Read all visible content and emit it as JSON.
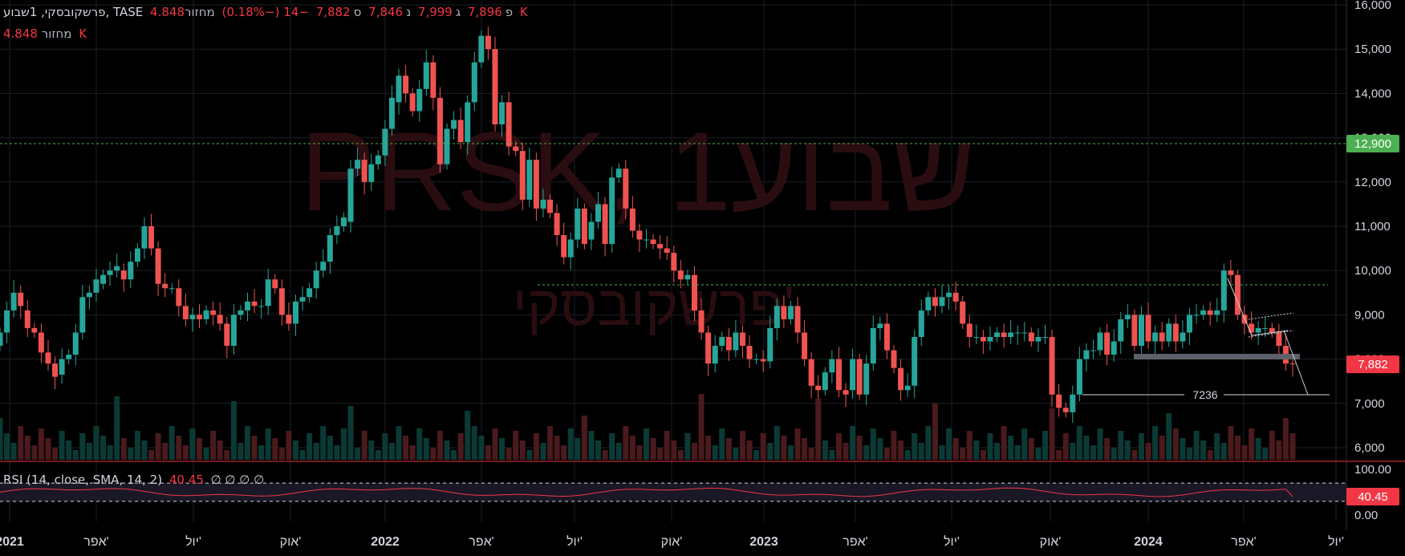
{
  "legend": {
    "symbol_line": "פרשקובסקי, 1שבוע, TASE",
    "open_label": "פ",
    "open_value": "7,896",
    "high_label": "ג",
    "high_value": "7,999",
    "low_label": "נ",
    "low_value": "7,846",
    "close_label": "ס",
    "close_value": "7,882",
    "change": "−14 (−0.18%)",
    "volume_label": "מחזור",
    "volume_value": "4.848 K"
  },
  "watermark": {
    "symbol": "PRSK, 1שבוע",
    "name": "פרשקובסקי'"
  },
  "rsi_legend": {
    "label": "RSI (14, close, SMA, 14, 2)",
    "value": "40.45",
    "extras": "∅ ∅ ∅ ∅"
  },
  "colors": {
    "up": "#26a69a",
    "down": "#ef5350",
    "background": "#000000",
    "grid": "#1c1f26",
    "price_line": "#4caf50",
    "rsi_line": "#f23645"
  },
  "chart_data": [
    {
      "type": "candlestick",
      "title": "",
      "ylim": [
        5800,
        16000
      ],
      "y_ticks": [
        "6,000",
        "7,000",
        "8,000",
        "9,000",
        "10,000",
        "11,000",
        "12,000",
        "13,000",
        "14,000",
        "15,000",
        "16,000"
      ],
      "x_ticks": [
        "2021",
        "אפר'",
        "יול'",
        "אוק'",
        "2022",
        "אפר'",
        "יול'",
        "אוק'",
        "2023",
        "אפר'",
        "יול'",
        "אוק'",
        "2024",
        "אפר'",
        "יול'"
      ],
      "period": "1W",
      "candles_approx": [
        [
          8300,
          8600
        ],
        [
          8600,
          9100
        ],
        [
          9100,
          9500
        ],
        [
          9500,
          9200
        ],
        [
          9100,
          8700
        ],
        [
          8700,
          8600
        ],
        [
          8600,
          8150
        ],
        [
          8150,
          7900
        ],
        [
          7900,
          7600
        ],
        [
          7650,
          8000
        ],
        [
          8000,
          8100
        ],
        [
          8100,
          8600
        ],
        [
          8600,
          9400
        ],
        [
          9400,
          9500
        ],
        [
          9500,
          9800
        ],
        [
          9700,
          9900
        ],
        [
          9900,
          10000
        ],
        [
          10000,
          10100
        ],
        [
          10000,
          9800
        ],
        [
          9800,
          10200
        ],
        [
          10200,
          10500
        ],
        [
          10500,
          11000
        ],
        [
          11000,
          10500
        ],
        [
          10500,
          9700
        ],
        [
          9700,
          9600
        ],
        [
          9600,
          9600
        ],
        [
          9600,
          9200
        ],
        [
          9200,
          8900
        ],
        [
          8900,
          9000
        ],
        [
          9000,
          8900
        ],
        [
          8900,
          9100
        ],
        [
          9100,
          9000
        ],
        [
          9000,
          8800
        ],
        [
          8800,
          8300
        ],
        [
          8300,
          9000
        ],
        [
          9000,
          9100
        ],
        [
          9100,
          9300
        ],
        [
          9300,
          9200
        ],
        [
          9200,
          9200
        ],
        [
          9200,
          9800
        ],
        [
          9800,
          9600
        ],
        [
          9600,
          9000
        ],
        [
          9000,
          8800
        ],
        [
          8800,
          9300
        ],
        [
          9300,
          9400
        ],
        [
          9400,
          9600
        ],
        [
          9600,
          10000
        ],
        [
          10000,
          10200
        ],
        [
          10200,
          10800
        ],
        [
          10800,
          11000
        ],
        [
          11000,
          11200
        ],
        [
          11100,
          12300
        ],
        [
          12300,
          12500
        ],
        [
          12500,
          12000
        ],
        [
          12000,
          12400
        ],
        [
          12400,
          12600
        ],
        [
          12600,
          13200
        ],
        [
          13200,
          13900
        ],
        [
          13800,
          14400
        ],
        [
          14400,
          14000
        ],
        [
          14000,
          13600
        ],
        [
          13600,
          14100
        ],
        [
          14100,
          14700
        ],
        [
          14700,
          13900
        ],
        [
          13900,
          12400
        ],
        [
          12400,
          13200
        ],
        [
          13200,
          13400
        ],
        [
          13400,
          12900
        ],
        [
          12900,
          13800
        ],
        [
          13800,
          14700
        ],
        [
          14700,
          15300
        ],
        [
          15300,
          15000
        ],
        [
          15000,
          13300
        ],
        [
          13300,
          13800
        ],
        [
          13800,
          12800
        ],
        [
          12800,
          12700
        ],
        [
          12700,
          11600
        ],
        [
          11600,
          12500
        ],
        [
          12500,
          11400
        ],
        [
          11400,
          11600
        ],
        [
          11600,
          11300
        ],
        [
          11300,
          10800
        ],
        [
          10800,
          10300
        ],
        [
          10300,
          10700
        ],
        [
          10700,
          11400
        ],
        [
          11400,
          10600
        ],
        [
          10700,
          11100
        ],
        [
          11100,
          11500
        ],
        [
          11500,
          10600
        ],
        [
          10600,
          12100
        ],
        [
          12100,
          12300
        ],
        [
          12300,
          11400
        ],
        [
          11400,
          10900
        ],
        [
          10900,
          10700
        ],
        [
          10700,
          10700
        ],
        [
          10700,
          10600
        ],
        [
          10600,
          10500
        ],
        [
          10500,
          10400
        ],
        [
          10400,
          10000
        ],
        [
          10000,
          9800
        ],
        [
          9800,
          9900
        ],
        [
          9900,
          9100
        ],
        [
          9100,
          8600
        ],
        [
          8600,
          7900
        ],
        [
          7900,
          8300
        ],
        [
          8300,
          8500
        ],
        [
          8500,
          8200
        ],
        [
          8200,
          8600
        ],
        [
          8600,
          8300
        ],
        [
          8300,
          8000
        ],
        [
          8000,
          8000
        ],
        [
          8000,
          7950
        ],
        [
          7950,
          8700
        ],
        [
          8700,
          9200
        ],
        [
          9200,
          8900
        ],
        [
          8900,
          9200
        ],
        [
          9200,
          8600
        ],
        [
          8600,
          8000
        ],
        [
          8000,
          7400
        ],
        [
          7400,
          7300
        ],
        [
          7300,
          7700
        ],
        [
          7700,
          8000
        ],
        [
          8000,
          7300
        ],
        [
          7300,
          7200
        ],
        [
          7300,
          8000
        ],
        [
          8000,
          7200
        ],
        [
          7200,
          7900
        ],
        [
          7900,
          8700
        ],
        [
          8700,
          8800
        ],
        [
          8800,
          8200
        ],
        [
          8200,
          7800
        ],
        [
          7800,
          7300
        ],
        [
          7300,
          7400
        ],
        [
          7400,
          8500
        ],
        [
          8500,
          9100
        ],
        [
          9100,
          9400
        ],
        [
          9400,
          9200
        ],
        [
          9200,
          9400
        ],
        [
          9400,
          9500
        ],
        [
          9500,
          9300
        ],
        [
          9300,
          8800
        ],
        [
          8800,
          8500
        ],
        [
          8500,
          8500
        ],
        [
          8500,
          8400
        ],
        [
          8400,
          8500
        ],
        [
          8500,
          8600
        ],
        [
          8600,
          8500
        ],
        [
          8500,
          8600
        ],
        [
          8600,
          8600
        ],
        [
          8600,
          8600
        ],
        [
          8600,
          8400
        ],
        [
          8400,
          8500
        ],
        [
          8500,
          8500
        ],
        [
          8500,
          7200
        ],
        [
          7200,
          6900
        ],
        [
          6900,
          6800
        ],
        [
          6800,
          7200
        ],
        [
          7200,
          8000
        ],
        [
          8000,
          8200
        ],
        [
          8200,
          8200
        ],
        [
          8200,
          8600
        ],
        [
          8600,
          8100
        ],
        [
          8100,
          8400
        ],
        [
          8400,
          8900
        ],
        [
          8900,
          9000
        ],
        [
          9000,
          8300
        ],
        [
          8300,
          9000
        ],
        [
          9000,
          8400
        ],
        [
          8400,
          8600
        ],
        [
          8600,
          8400
        ],
        [
          8400,
          8800
        ],
        [
          8800,
          8400
        ],
        [
          8400,
          8600
        ],
        [
          8600,
          9000
        ],
        [
          9000,
          9000
        ],
        [
          9000,
          9100
        ],
        [
          9100,
          9000
        ],
        [
          9000,
          9100
        ],
        [
          9100,
          10000
        ],
        [
          10000,
          9900
        ],
        [
          9900,
          9000
        ],
        [
          9000,
          8800
        ],
        [
          8800,
          8600
        ],
        [
          8600,
          8700
        ],
        [
          8700,
          8700
        ],
        [
          8700,
          8600
        ],
        [
          8600,
          8300
        ],
        [
          8300,
          7900
        ],
        [
          7900,
          7882
        ]
      ],
      "annotations": {
        "horizontal_line_label": "7236",
        "price_line_label": "12,900",
        "last_price_label": "7,882"
      }
    },
    {
      "type": "line",
      "title": "RSI",
      "ylim": [
        0,
        100
      ],
      "y_ticks": [
        "100.00",
        "0.00"
      ],
      "last_value_label": "40.45"
    }
  ]
}
